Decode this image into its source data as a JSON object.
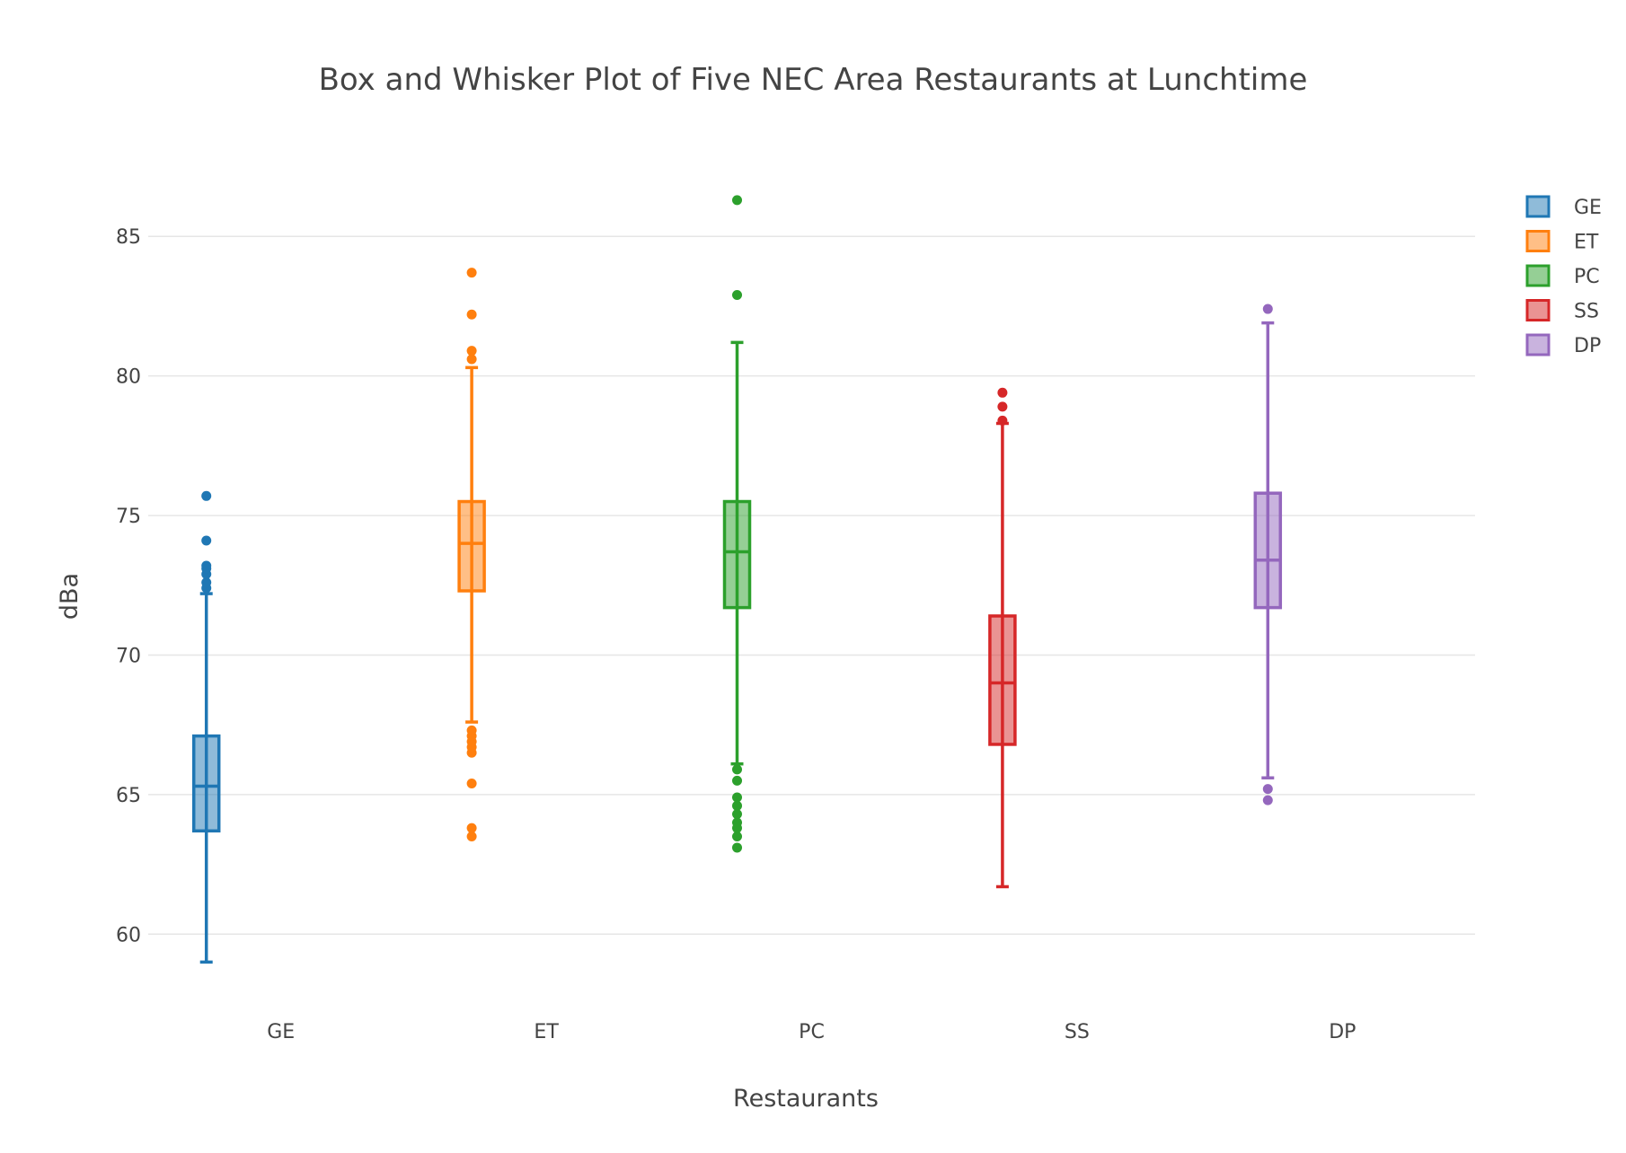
{
  "chart_data": {
    "type": "box",
    "title": "Box and Whisker Plot of Five NEC Area Restaurants at Lunchtime",
    "xlabel": "Restaurants",
    "ylabel": "dBa",
    "ylim": [
      57.5,
      88.0
    ],
    "yticks": [
      60,
      65,
      70,
      75,
      80,
      85
    ],
    "categories": [
      "GE",
      "ET",
      "PC",
      "SS",
      "DP"
    ],
    "grid": true,
    "legend_position": "top-right",
    "series": [
      {
        "name": "GE",
        "color": "#1f77b4",
        "fill": "rgba(31,119,180,0.5)",
        "whisker_low": 59.0,
        "q1": 63.7,
        "median": 65.3,
        "q3": 67.1,
        "whisker_high": 72.2,
        "outliers": [
          72.4,
          72.6,
          72.9,
          73.1,
          73.2,
          74.1,
          75.7
        ]
      },
      {
        "name": "ET",
        "color": "#ff7f0e",
        "fill": "rgba(255,127,14,0.5)",
        "whisker_low": 67.6,
        "q1": 72.3,
        "median": 74.0,
        "q3": 75.5,
        "whisker_high": 80.3,
        "outliers": [
          63.5,
          63.8,
          65.4,
          66.5,
          66.7,
          66.9,
          67.1,
          67.3,
          80.6,
          80.9,
          82.2,
          83.7
        ]
      },
      {
        "name": "PC",
        "color": "#2ca02c",
        "fill": "rgba(44,160,44,0.5)",
        "whisker_low": 66.1,
        "q1": 71.7,
        "median": 73.7,
        "q3": 75.5,
        "whisker_high": 81.2,
        "outliers": [
          63.1,
          63.5,
          63.8,
          64.0,
          64.3,
          64.6,
          64.9,
          65.5,
          65.9,
          82.9,
          86.3
        ]
      },
      {
        "name": "SS",
        "color": "#d62728",
        "fill": "rgba(214,39,40,0.5)",
        "whisker_low": 61.7,
        "q1": 66.8,
        "median": 69.0,
        "q3": 71.4,
        "whisker_high": 78.3,
        "outliers": [
          78.4,
          78.9,
          79.4
        ]
      },
      {
        "name": "DP",
        "color": "#9467bd",
        "fill": "rgba(148,103,189,0.5)",
        "whisker_low": 65.6,
        "q1": 71.7,
        "median": 73.4,
        "q3": 75.8,
        "whisker_high": 81.9,
        "outliers": [
          64.8,
          65.2,
          82.4
        ]
      }
    ]
  }
}
